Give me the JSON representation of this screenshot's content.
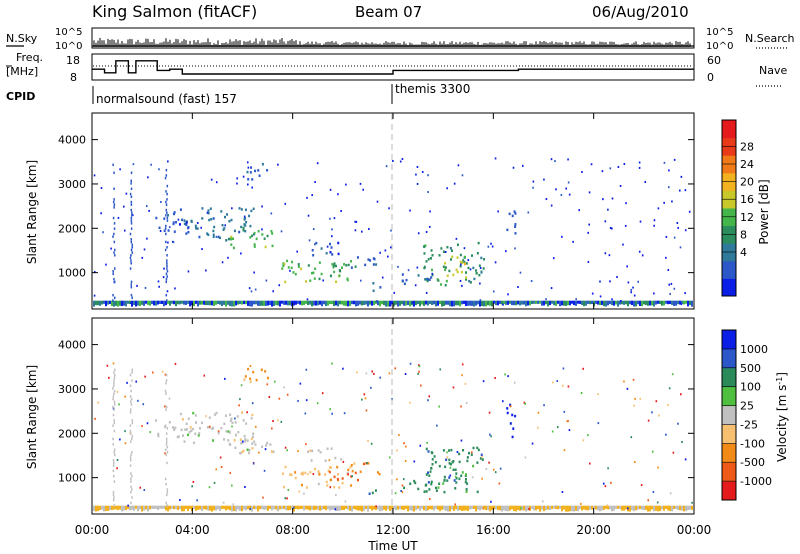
{
  "header": {
    "title": "King Salmon (fitACF)",
    "beam": "Beam 07",
    "date": "06/Aug/2010"
  },
  "panels": {
    "nsky_label": "N.Sky",
    "nsky_ticks": [
      "10^5",
      "10^0"
    ],
    "nsearch_label": "N.Search",
    "freq_label_line1": "Freq.",
    "freq_label_line2": "[MHz]",
    "freq_ticks": [
      "18",
      "8"
    ],
    "nave_label": "Nave",
    "nave_ticks": [
      "60",
      "0"
    ],
    "cpid_label": "CPID",
    "cpid_segments": [
      {
        "name": "normalsound (fast) 157",
        "start": 0
      },
      {
        "name": "themis 3300",
        "start": 12
      }
    ]
  },
  "chart_data": {
    "type": "heatmap",
    "x_axis": {
      "label": "Time UT",
      "range": [
        0,
        24
      ],
      "ticks": [
        "00:00",
        "04:00",
        "08:00",
        "12:00",
        "16:00",
        "20:00",
        "00:00"
      ]
    },
    "y_axis": {
      "label": "Slant Range [km]",
      "range": [
        180,
        4600
      ],
      "ticks": [
        1000,
        2000,
        3000,
        4000
      ]
    },
    "marker_line_x": 12,
    "frequency_segments": [
      {
        "start": 0,
        "end": 0.5,
        "mhz": 12.5
      },
      {
        "start": 0.5,
        "end": 0.95,
        "mhz": 11
      },
      {
        "start": 0.95,
        "end": 1.45,
        "mhz": 16
      },
      {
        "start": 1.45,
        "end": 1.75,
        "mhz": 11
      },
      {
        "start": 1.75,
        "end": 2.6,
        "mhz": 16
      },
      {
        "start": 2.6,
        "end": 3.1,
        "mhz": 12
      },
      {
        "start": 3.1,
        "end": 3.6,
        "mhz": 12.5
      },
      {
        "start": 3.6,
        "end": 12,
        "mhz": 10.5
      },
      {
        "start": 12,
        "end": 17,
        "mhz": 12
      },
      {
        "start": 17,
        "end": 24,
        "mhz": 12.5
      }
    ],
    "power_panel": {
      "colorbar_label": "Power [dB]",
      "colorbar_ticks": [
        "28",
        "24",
        "20",
        "16",
        "12",
        "8",
        "4"
      ],
      "colors": [
        "#0a1ee6",
        "#2b57c8",
        "#2f7a9a",
        "#2b8d5e",
        "#43b54a",
        "#c8c82a",
        "#f2b21f",
        "#f07a17",
        "#e83a18",
        "#e41a1c"
      ]
    },
    "velocity_panel": {
      "colorbar_label": "Velocity [m s^-1]",
      "colorbar_ticks": [
        "1000",
        "500",
        "100",
        "25",
        "-25",
        "-100",
        "-500",
        "-1000"
      ],
      "colors": [
        "#e41a1c",
        "#f05a18",
        "#f28a18",
        "#f7c070",
        "#c0c0c0",
        "#4fbf3f",
        "#2a8a5a",
        "#2b57c8",
        "#0a1ee6"
      ]
    },
    "echo_regions": [
      {
        "t0": 3.5,
        "t1": 6.5,
        "r0": 1750,
        "r1": 2500,
        "power": 2,
        "velocity": 4
      },
      {
        "t0": 5.5,
        "t1": 7.3,
        "r0": 1550,
        "r1": 2000,
        "power": 4,
        "velocity": 4
      },
      {
        "t0": 7.5,
        "t1": 10.3,
        "r0": 800,
        "r1": 1300,
        "power": 4,
        "velocity": 3
      },
      {
        "t0": 9.4,
        "t1": 10.6,
        "r0": 920,
        "r1": 1250,
        "power": 3,
        "velocity": 1
      },
      {
        "t0": 10.3,
        "t1": 11.5,
        "r0": 1100,
        "r1": 1400,
        "power": 1,
        "velocity": 2
      },
      {
        "t0": 11.0,
        "t1": 11.6,
        "r0": 600,
        "r1": 800,
        "power": 2,
        "velocity": 6
      },
      {
        "t0": 13.2,
        "t1": 15.6,
        "r0": 700,
        "r1": 1700,
        "power": 3,
        "velocity": 6
      },
      {
        "t0": 14.0,
        "t1": 15.0,
        "r0": 900,
        "r1": 1400,
        "power": 5,
        "velocity": 6
      },
      {
        "t0": 12.3,
        "t1": 13.5,
        "r0": 700,
        "r1": 1000,
        "power": 1,
        "velocity": 6
      },
      {
        "t0": 6.0,
        "t1": 7.0,
        "r0": 3100,
        "r1": 3500,
        "power": 1,
        "velocity": 2
      },
      {
        "t0": 16.5,
        "t1": 16.9,
        "r0": 1900,
        "r1": 2700,
        "power": 1,
        "velocity": 8
      },
      {
        "t0": 2.5,
        "t1": 4.0,
        "r0": 1900,
        "r1": 2400,
        "power": 1,
        "velocity": 4
      },
      {
        "t0": 8.5,
        "t1": 10.0,
        "r0": 1400,
        "r1": 1700,
        "power": 1,
        "velocity": 4
      }
    ]
  }
}
